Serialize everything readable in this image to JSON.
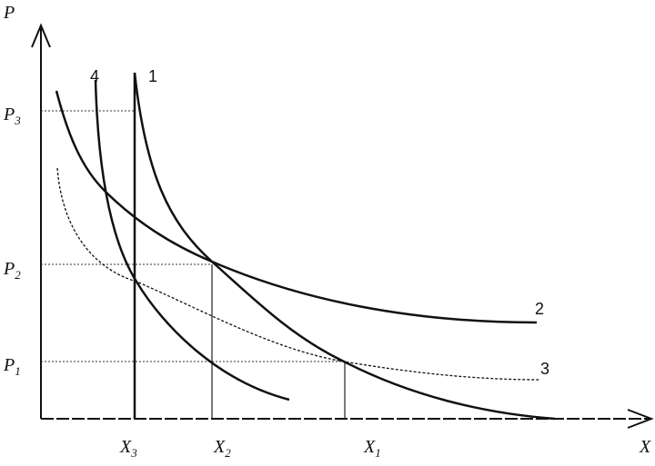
{
  "axes": {
    "y_label": "P",
    "x_label": "X"
  },
  "price_levels": [
    {
      "symbol": "P",
      "index": "3"
    },
    {
      "symbol": "P",
      "index": "2"
    },
    {
      "symbol": "P",
      "index": "1"
    }
  ],
  "quantity_levels": [
    {
      "symbol": "X",
      "index": "3"
    },
    {
      "symbol": "X",
      "index": "2"
    },
    {
      "symbol": "X",
      "index": "1"
    }
  ],
  "curve_labels": [
    "1",
    "2",
    "3",
    "4"
  ]
}
